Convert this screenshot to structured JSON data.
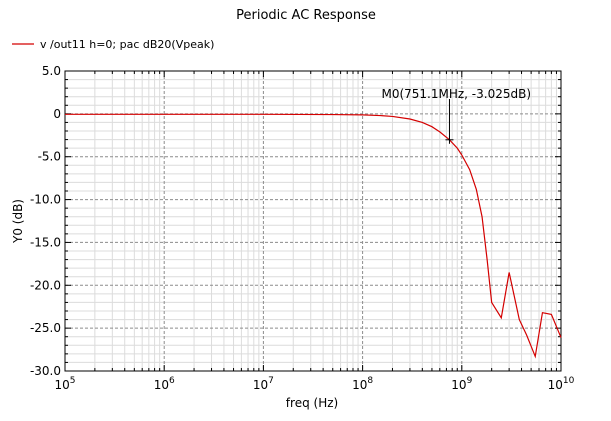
{
  "chart_data": {
    "type": "line",
    "title": "Periodic AC Response",
    "xlabel": "freq (Hz)",
    "ylabel": "Y0 (dB)",
    "x_scale": "log",
    "xlim": [
      100000,
      10000000000
    ],
    "ylim": [
      -30,
      5
    ],
    "x_ticks": [
      {
        "base": "10",
        "exp": "5"
      },
      {
        "base": "10",
        "exp": "6"
      },
      {
        "base": "10",
        "exp": "7"
      },
      {
        "base": "10",
        "exp": "8"
      },
      {
        "base": "10",
        "exp": "9"
      },
      {
        "base": "10",
        "exp": "10"
      }
    ],
    "y_ticks": [
      "5.0",
      "0",
      "-5.0",
      "-10.0",
      "-15.0",
      "-20.0",
      "-25.0",
      "-30.0"
    ],
    "y_tick_values": [
      5,
      0,
      -5,
      -10,
      -15,
      -20,
      -25,
      -30
    ],
    "grid": true,
    "legend_position": "top-left",
    "series": [
      {
        "name": "v /out11 h=0; pac dB20(Vpeak)",
        "color": "#d40000",
        "x": [
          100000,
          1000000,
          10000000,
          50000000,
          100000000,
          150000000,
          200000000,
          300000000,
          400000000,
          500000000,
          600000000,
          751100000,
          900000000,
          1000000000,
          1200000000,
          1400000000,
          1600000000,
          1800000000,
          2000000000,
          2500000000,
          3000000000,
          3800000000,
          4500000000,
          5500000000,
          6500000000,
          8000000000,
          10000000000
        ],
        "y": [
          -0.05,
          -0.05,
          -0.05,
          -0.08,
          -0.12,
          -0.2,
          -0.3,
          -0.6,
          -1.0,
          -1.5,
          -2.1,
          -3.025,
          -4.0,
          -4.8,
          -6.5,
          -8.8,
          -12.0,
          -17.0,
          -22.0,
          -23.8,
          -18.5,
          -24.0,
          -25.8,
          -28.3,
          -23.2,
          -23.4,
          -26.1
        ]
      }
    ],
    "marker": {
      "label": "M0(751.1MHz, -3.025dB)",
      "x": 751100000,
      "y": -3.025
    }
  }
}
